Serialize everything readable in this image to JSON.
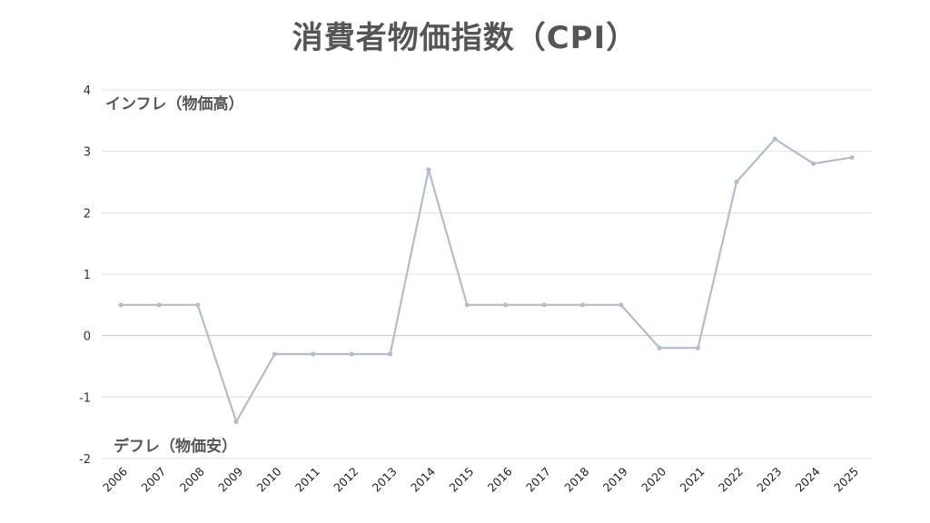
{
  "title": "消費者物価指数（CPI）",
  "annotations": {
    "inflation": "インフレ（物価高）",
    "deflation": "デフレ（物価安）"
  },
  "colors": {
    "line": "#b4bccb",
    "grid": "#e3e3e3",
    "zero_line": "#c8c8c8",
    "title": "#555555"
  },
  "chart_data": {
    "type": "line",
    "title": "消費者物価指数（CPI）",
    "xlabel": "",
    "ylabel": "",
    "categories": [
      "2006",
      "2007",
      "2008",
      "2009",
      "2010",
      "2011",
      "2012",
      "2013",
      "2014",
      "2015",
      "2016",
      "2017",
      "2018",
      "2019",
      "2020",
      "2021",
      "2022",
      "2023",
      "2024",
      "2025"
    ],
    "series": [
      {
        "name": "CPI",
        "values": [
          0.5,
          0.5,
          0.5,
          -1.4,
          -0.3,
          -0.3,
          -0.3,
          -0.3,
          2.7,
          0.5,
          0.5,
          0.5,
          0.5,
          0.5,
          -0.2,
          -0.2,
          2.5,
          3.2,
          2.8,
          2.9
        ]
      }
    ],
    "yticks": [
      4,
      3,
      2,
      1,
      0,
      -1,
      -2
    ],
    "ylim": [
      -2,
      4
    ],
    "grid": true,
    "legend": "none",
    "annotations": [
      {
        "text": "インフレ（物価高）",
        "position": "top-left"
      },
      {
        "text": "デフレ（物価安）",
        "position": "bottom-left"
      }
    ]
  }
}
